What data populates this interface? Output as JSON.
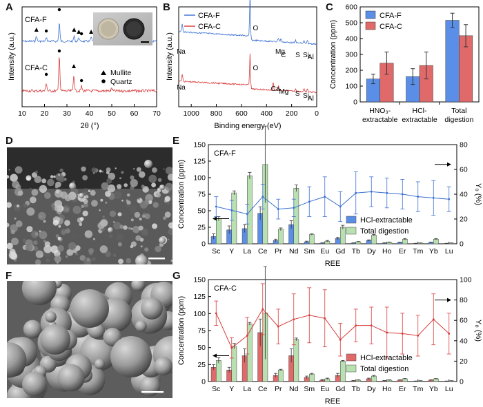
{
  "figure": {
    "letters": [
      "A",
      "B",
      "C",
      "D",
      "E",
      "F",
      "G"
    ]
  },
  "panel_a": {
    "label_top": "CFA-F",
    "label_bottom": "CFA-C",
    "ylabel": "Intensity (a.u.)",
    "xlabel": "2θ (°)",
    "xticks": [
      "10",
      "20",
      "30",
      "40",
      "50",
      "60",
      "70"
    ],
    "legend": [
      "Mullite",
      "Quartz"
    ],
    "colors": {
      "top": "#3a6fd0",
      "bottom": "#d83a3a"
    }
  },
  "panel_b": {
    "ylabel": "Intensity (a.u.)",
    "xlabel": "Binding energy (eV)",
    "xticks": [
      "1000",
      "800",
      "600",
      "400",
      "200",
      "0"
    ],
    "legend": [
      "CFA-F",
      "CFA-C"
    ],
    "peaks_top": [
      "Na",
      "O",
      "Mg",
      "C",
      "S",
      "Si",
      "Al"
    ],
    "peaks_bottom": [
      "Na",
      "O",
      "Ca",
      "Mg",
      "S",
      "Si",
      "Al"
    ],
    "colors": {
      "top": "#3a6fd0",
      "bottom": "#d83a3a"
    }
  },
  "chart_data": [
    {
      "type": "bar",
      "panel": "C",
      "categories": [
        "HNO₃-|extractable",
        "HCl-|extractable",
        "Total|digestion"
      ],
      "series": [
        {
          "name": "CFA-F",
          "values": [
            145,
            160,
            515
          ],
          "errors": [
            30,
            50,
            45
          ]
        },
        {
          "name": "CFA-C",
          "values": [
            245,
            230,
            418
          ],
          "errors": [
            70,
            85,
            70
          ]
        }
      ],
      "ylabel": "Concentration (ppm)",
      "ylim": [
        0,
        600
      ],
      "yticks": [
        "0",
        "100",
        "200",
        "300",
        "400",
        "500",
        "600"
      ],
      "legend": "top-left",
      "colors": [
        "#5b8ee6",
        "#e06a6a"
      ]
    },
    {
      "type": "bar",
      "panel": "E",
      "title": "CFA-F",
      "categories": [
        "Sc",
        "Y",
        "La",
        "Ce",
        "Pr",
        "Nd",
        "Sm",
        "Eu",
        "Gd",
        "Tb",
        "Dy",
        "Ho",
        "Er",
        "Tm",
        "Yb",
        "Lu"
      ],
      "series": [
        {
          "name": "HCl-extractable",
          "values": [
            11,
            21,
            23,
            46,
            5,
            29,
            3,
            1,
            8,
            1,
            5,
            1,
            2,
            0.5,
            2,
            0.5
          ],
          "errors": [
            4,
            6,
            6,
            10,
            2,
            6,
            1,
            0.5,
            2,
            0.5,
            1,
            0.5,
            0.5,
            0.3,
            0.5,
            0.3
          ]
        },
        {
          "name": "Total digestion",
          "values": [
            38,
            77,
            103,
            120,
            22,
            84,
            14,
            4,
            25,
            3,
            13,
            2,
            7,
            1,
            7,
            1
          ],
          "errors": [
            3,
            3,
            5,
            58,
            2,
            5,
            1,
            1,
            3,
            0.5,
            1,
            0.5,
            1,
            0.3,
            1,
            0.3
          ]
        }
      ],
      "y2": {
        "name": "Y₀ (%)",
        "values": [
          30,
          27,
          24,
          38,
          28,
          29,
          34,
          38,
          30,
          41,
          42,
          41,
          40,
          38,
          37,
          36
        ],
        "errors": [
          8,
          8,
          8,
          10,
          8,
          7,
          12,
          16,
          12,
          17,
          12,
          12,
          12,
          12,
          14,
          10
        ]
      },
      "xlabel": "REE",
      "ylabel": "Concentration (ppm)",
      "y2label": "Y₀ (%)",
      "ylim": [
        0,
        150
      ],
      "y2lim": [
        0,
        80
      ],
      "yticks": [
        "0",
        "25",
        "50",
        "75",
        "100",
        "125",
        "150"
      ],
      "y2ticks": [
        "0",
        "20",
        "40",
        "60",
        "80"
      ],
      "legend": "bottom-right",
      "colors": [
        "#5b8ee6",
        "#b8e0b0",
        "#3a6fd0"
      ]
    },
    {
      "type": "bar",
      "panel": "G",
      "title": "CFA-C",
      "categories": [
        "Sc",
        "Y",
        "La",
        "Ce",
        "Pr",
        "Nd",
        "Sm",
        "Eu",
        "Gd",
        "Tb",
        "Dy",
        "Ho",
        "Er",
        "Tm",
        "Yb",
        "Lu"
      ],
      "series": [
        {
          "name": "HCl-extractable",
          "values": [
            21,
            17,
            38,
            72,
            9,
            38,
            6,
            2,
            9,
            1,
            4,
            1,
            2,
            0.5,
            2,
            0.5
          ],
          "errors": [
            4,
            4,
            10,
            20,
            3,
            10,
            2,
            1,
            3,
            0.5,
            1,
            0.5,
            0.5,
            0.3,
            0.5,
            0.3
          ]
        },
        {
          "name": "Total digestion",
          "values": [
            31,
            52,
            85,
            101,
            17,
            62,
            11,
            4,
            30,
            2,
            8,
            2,
            4,
            1,
            4,
            1
          ],
          "errors": [
            4,
            4,
            2,
            68,
            1,
            2,
            1,
            1,
            1,
            0.5,
            1,
            0.5,
            0.5,
            0.3,
            0.5,
            0.3
          ]
        }
      ],
      "y2": {
        "name": "Y₀ (%)",
        "values": [
          67,
          33,
          45,
          71,
          54,
          61,
          65,
          62,
          41,
          55,
          55,
          48,
          47,
          45,
          61,
          47
        ],
        "errors": [
          12,
          10,
          18,
          25,
          17,
          25,
          27,
          28,
          16,
          16,
          18,
          25,
          20,
          20,
          25,
          20
        ]
      },
      "xlabel": "REE",
      "ylabel": "Concentration (ppm)",
      "y2label": "Y₀ (%)",
      "ylim": [
        0,
        150
      ],
      "y2lim": [
        0,
        100
      ],
      "yticks": [
        "0",
        "25",
        "50",
        "75",
        "100",
        "125",
        "150"
      ],
      "y2ticks": [
        "0",
        "20",
        "40",
        "60",
        "80",
        "100"
      ],
      "legend": "bottom-right",
      "colors": [
        "#e06a6a",
        "#b8e0b0",
        "#d83a3a"
      ]
    }
  ]
}
